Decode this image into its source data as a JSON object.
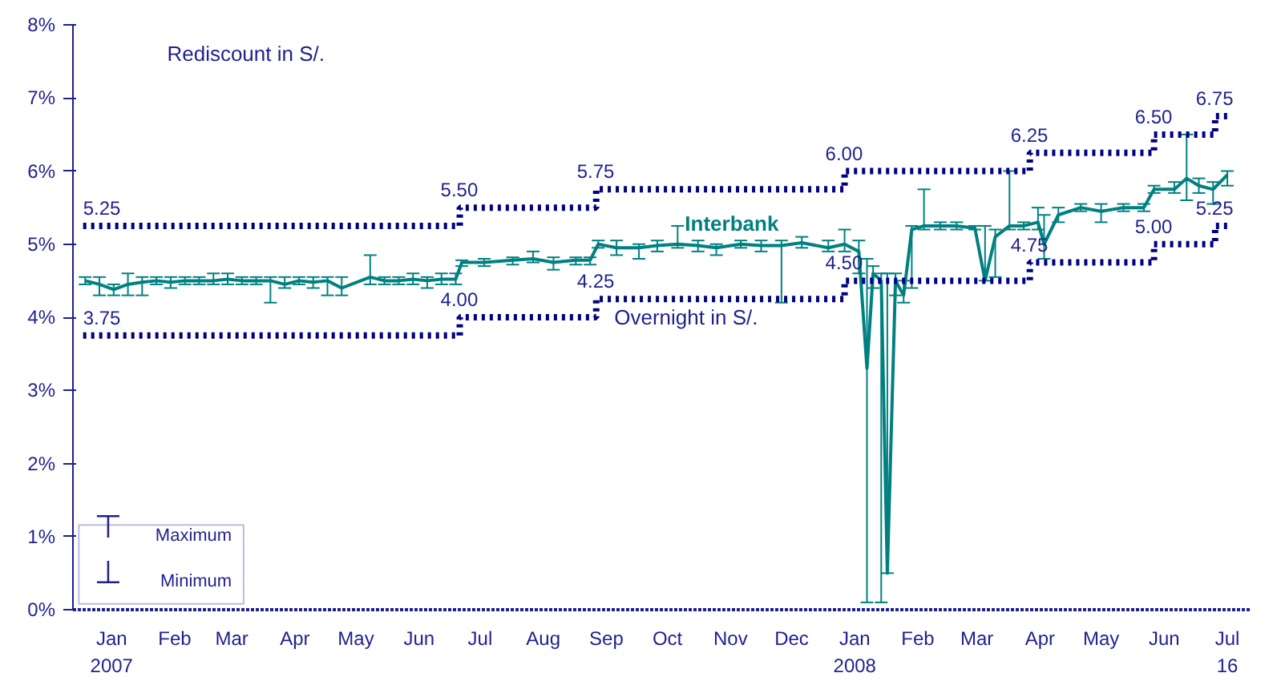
{
  "chart_data": {
    "type": "line",
    "ylim": [
      0,
      8
    ],
    "yticks": [
      {
        "value": 0,
        "label": "0%"
      },
      {
        "value": 1,
        "label": "1%"
      },
      {
        "value": 2,
        "label": "2%"
      },
      {
        "value": 3,
        "label": "3%"
      },
      {
        "value": 4,
        "label": "4%"
      },
      {
        "value": 5,
        "label": "5%"
      },
      {
        "value": 6,
        "label": "6%"
      },
      {
        "value": 7,
        "label": "7%"
      },
      {
        "value": 8,
        "label": "8%"
      }
    ],
    "xlim": [
      "2006-12-27",
      "2008-07-27"
    ],
    "xticks": [
      {
        "value": "2007-01-15",
        "label": "Jan\n2007"
      },
      {
        "value": "2007-02-15",
        "label": "Feb"
      },
      {
        "value": "2007-03-15",
        "label": "Mar"
      },
      {
        "value": "2007-04-15",
        "label": "Apr"
      },
      {
        "value": "2007-05-15",
        "label": "May"
      },
      {
        "value": "2007-06-15",
        "label": "Jun"
      },
      {
        "value": "2007-07-15",
        "label": "Jul"
      },
      {
        "value": "2007-08-15",
        "label": "Aug"
      },
      {
        "value": "2007-09-15",
        "label": "Sep"
      },
      {
        "value": "2007-10-15",
        "label": "Oct"
      },
      {
        "value": "2007-11-15",
        "label": "Nov"
      },
      {
        "value": "2007-12-15",
        "label": "Dec"
      },
      {
        "value": "2008-01-15",
        "label": "Jan\n2008"
      },
      {
        "value": "2008-02-15",
        "label": "Feb"
      },
      {
        "value": "2008-03-15",
        "label": "Mar"
      },
      {
        "value": "2008-04-15",
        "label": "Apr"
      },
      {
        "value": "2008-05-15",
        "label": "May"
      },
      {
        "value": "2008-06-15",
        "label": "Jun"
      },
      {
        "value": "2008-07-16",
        "label": "Jul\n16"
      }
    ],
    "grid": false,
    "marker": "none",
    "annotations": [
      "⊤",
      "Maximum",
      "⊥",
      "Minimum"
    ],
    "series": [
      {
        "name": "Rediscount in S/.",
        "type": "step",
        "line_style": "dotted",
        "color": "#000080",
        "x": [
          "2007-01-01",
          "2007-07-05",
          "2007-09-10",
          "2008-01-10",
          "2008-04-10",
          "2008-06-10",
          "2008-07-10",
          "2008-07-16"
        ],
        "values": [
          5.25,
          5.5,
          5.75,
          6.0,
          6.25,
          6.5,
          6.75,
          6.75
        ],
        "value_labels": [
          "5.25",
          "5.50",
          "5.75",
          "6.00",
          "6.25",
          "6.50",
          "6.75",
          null
        ]
      },
      {
        "name": "Interbank",
        "color": "#008080",
        "x": [
          "2007-01-02",
          "2007-01-09",
          "2007-01-16",
          "2007-01-23",
          "2007-01-30",
          "2007-02-06",
          "2007-02-13",
          "2007-02-20",
          "2007-02-27",
          "2007-03-06",
          "2007-03-13",
          "2007-03-20",
          "2007-03-27",
          "2007-04-03",
          "2007-04-10",
          "2007-04-17",
          "2007-04-24",
          "2007-05-01",
          "2007-05-08",
          "2007-05-22",
          "2007-05-29",
          "2007-06-05",
          "2007-06-12",
          "2007-06-19",
          "2007-06-26",
          "2007-07-03",
          "2007-07-06",
          "2007-07-17",
          "2007-07-31",
          "2007-08-10",
          "2007-08-20",
          "2007-08-31",
          "2007-09-07",
          "2007-09-11",
          "2007-09-20",
          "2007-10-01",
          "2007-10-10",
          "2007-10-20",
          "2007-10-30",
          "2007-11-08",
          "2007-11-20",
          "2007-11-30",
          "2007-12-10",
          "2007-12-20",
          "2008-01-02",
          "2008-01-10",
          "2008-01-17",
          "2008-01-21",
          "2008-01-24",
          "2008-01-28",
          "2008-01-31",
          "2008-02-04",
          "2008-02-08",
          "2008-02-12",
          "2008-02-18",
          "2008-02-26",
          "2008-03-05",
          "2008-03-14",
          "2008-03-19",
          "2008-03-24",
          "2008-03-31",
          "2008-04-07",
          "2008-04-14",
          "2008-04-17",
          "2008-04-24",
          "2008-05-05",
          "2008-05-15",
          "2008-05-26",
          "2008-06-05",
          "2008-06-10",
          "2008-06-20",
          "2008-06-26",
          "2008-07-02",
          "2008-07-09",
          "2008-07-16"
        ],
        "values": [
          4.5,
          4.45,
          4.38,
          4.45,
          4.48,
          4.5,
          4.48,
          4.5,
          4.5,
          4.5,
          4.52,
          4.5,
          4.5,
          4.5,
          4.45,
          4.5,
          4.48,
          4.5,
          4.4,
          4.55,
          4.5,
          4.5,
          4.52,
          4.5,
          4.52,
          4.52,
          4.75,
          4.75,
          4.78,
          4.8,
          4.75,
          4.78,
          4.78,
          5.0,
          4.95,
          4.95,
          4.98,
          5.0,
          4.98,
          4.95,
          5.0,
          4.98,
          4.98,
          5.02,
          4.95,
          5.0,
          4.9,
          3.3,
          4.6,
          4.5,
          0.5,
          4.5,
          4.3,
          5.2,
          5.25,
          5.25,
          5.25,
          5.22,
          4.5,
          5.1,
          5.25,
          5.25,
          5.3,
          5.0,
          5.4,
          5.5,
          5.45,
          5.5,
          5.5,
          5.75,
          5.75,
          5.9,
          5.8,
          5.75,
          5.95
        ],
        "errors": [
          [
            4.45,
            4.55
          ],
          [
            4.3,
            4.55
          ],
          [
            4.3,
            4.45
          ],
          [
            4.3,
            4.6
          ],
          [
            4.3,
            4.55
          ],
          [
            4.45,
            4.55
          ],
          [
            4.4,
            4.55
          ],
          [
            4.45,
            4.55
          ],
          [
            4.45,
            4.55
          ],
          [
            4.45,
            4.6
          ],
          [
            4.45,
            4.6
          ],
          [
            4.45,
            4.55
          ],
          [
            4.45,
            4.55
          ],
          [
            4.2,
            4.55
          ],
          [
            4.4,
            4.55
          ],
          [
            4.45,
            4.55
          ],
          [
            4.4,
            4.55
          ],
          [
            4.3,
            4.55
          ],
          [
            4.3,
            4.55
          ],
          [
            4.45,
            4.85
          ],
          [
            4.45,
            4.55
          ],
          [
            4.45,
            4.55
          ],
          [
            4.45,
            4.6
          ],
          [
            4.4,
            4.55
          ],
          [
            4.45,
            4.6
          ],
          [
            4.45,
            4.6
          ],
          [
            4.7,
            4.78
          ],
          [
            4.7,
            4.8
          ],
          [
            4.72,
            4.82
          ],
          [
            4.75,
            4.9
          ],
          [
            4.65,
            4.82
          ],
          [
            4.72,
            4.82
          ],
          [
            4.72,
            4.82
          ],
          [
            4.95,
            5.05
          ],
          [
            4.85,
            5.05
          ],
          [
            4.8,
            5.0
          ],
          [
            4.9,
            5.05
          ],
          [
            4.95,
            5.25
          ],
          [
            4.9,
            5.05
          ],
          [
            4.85,
            5.0
          ],
          [
            4.95,
            5.05
          ],
          [
            4.9,
            5.05
          ],
          [
            4.2,
            5.05
          ],
          [
            4.95,
            5.1
          ],
          [
            4.9,
            5.05
          ],
          [
            4.9,
            5.2
          ],
          [
            4.6,
            5.05
          ],
          [
            0.1,
            4.8
          ],
          [
            4.4,
            4.7
          ],
          [
            0.1,
            4.6
          ],
          [
            0.5,
            4.6
          ],
          [
            4.3,
            4.6
          ],
          [
            4.2,
            4.5
          ],
          [
            4.4,
            5.25
          ],
          [
            5.2,
            5.75
          ],
          [
            5.2,
            5.3
          ],
          [
            5.2,
            5.3
          ],
          [
            5.2,
            5.25
          ],
          [
            4.5,
            5.25
          ],
          [
            4.55,
            5.2
          ],
          [
            5.2,
            6.0
          ],
          [
            5.2,
            5.3
          ],
          [
            5.2,
            5.5
          ],
          [
            4.8,
            5.4
          ],
          [
            5.3,
            5.5
          ],
          [
            5.45,
            5.55
          ],
          [
            5.3,
            5.55
          ],
          [
            5.45,
            5.55
          ],
          [
            5.45,
            5.55
          ],
          [
            5.7,
            5.8
          ],
          [
            5.7,
            5.85
          ],
          [
            5.6,
            6.5
          ],
          [
            5.7,
            5.9
          ],
          [
            5.55,
            5.85
          ],
          [
            5.8,
            6.0
          ]
        ]
      },
      {
        "name": "Overnight in S/.",
        "type": "step",
        "line_style": "dotted",
        "color": "#000080",
        "x": [
          "2007-01-01",
          "2007-07-05",
          "2007-09-10",
          "2008-01-10",
          "2008-04-10",
          "2008-06-10",
          "2008-07-10",
          "2008-07-16"
        ],
        "values": [
          3.75,
          4.0,
          4.25,
          4.5,
          4.75,
          5.0,
          5.25,
          5.25
        ],
        "value_labels": [
          "3.75",
          "4.00",
          "4.25",
          "4.50",
          "4.75",
          "5.00",
          "5.25",
          null
        ]
      }
    ]
  }
}
